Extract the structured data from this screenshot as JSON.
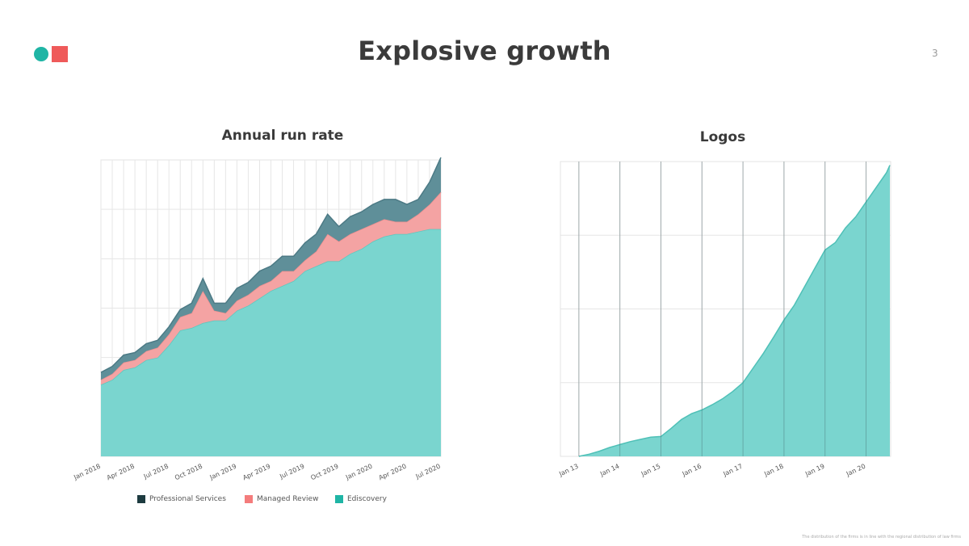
{
  "slide": {
    "title": "Explosive growth",
    "page_number": "3",
    "footnote": "The distribution of the firms is in line with the regional distribution of law firms",
    "brand_colors": {
      "teal": "#1fb5a5",
      "coral": "#ef5a5a"
    }
  },
  "chart_data": [
    {
      "type": "area",
      "stacked": true,
      "title": "Annual run rate",
      "grid": true,
      "legend_position": "bottom",
      "x": [
        "Jan 2018",
        "Feb 2018",
        "Mar 2018",
        "Apr 2018",
        "May 2018",
        "Jun 2018",
        "Jul 2018",
        "Aug 2018",
        "Sep 2018",
        "Oct 2018",
        "Nov 2018",
        "Dec 2018",
        "Jan 2019",
        "Feb 2019",
        "Mar 2019",
        "Apr 2019",
        "May 2019",
        "Jun 2019",
        "Jul 2019",
        "Aug 2019",
        "Sep 2019",
        "Oct 2019",
        "Nov 2019",
        "Dec 2019",
        "Jan 2020",
        "Feb 2020",
        "Mar 2020",
        "Apr 2020",
        "May 2020",
        "Jun 2020",
        "Jul 2020"
      ],
      "tick_labels": [
        "Jan 2018",
        "Apr 2018",
        "Jul 2018",
        "Oct 2018",
        "Jan 2019",
        "Apr 2019",
        "Jul 2019",
        "Oct 2019",
        "Jan 2020",
        "Apr 2020",
        "Jul 2020"
      ],
      "ylim": [
        0,
        6
      ],
      "series": [
        {
          "name": "Ediscovery",
          "color": "#7ad5cf",
          "values": [
            1.45,
            1.55,
            1.75,
            1.8,
            1.95,
            2.0,
            2.25,
            2.55,
            2.6,
            2.7,
            2.75,
            2.75,
            2.95,
            3.05,
            3.2,
            3.35,
            3.45,
            3.55,
            3.75,
            3.85,
            3.95,
            3.95,
            4.1,
            4.2,
            4.35,
            4.45,
            4.5,
            4.5,
            4.55,
            4.6,
            4.6
          ]
        },
        {
          "name": "Managed Review",
          "color": "#f4a3a3",
          "values": [
            0.1,
            0.12,
            0.15,
            0.15,
            0.18,
            0.2,
            0.22,
            0.27,
            0.3,
            0.65,
            0.2,
            0.15,
            0.2,
            0.22,
            0.25,
            0.2,
            0.3,
            0.2,
            0.22,
            0.3,
            0.55,
            0.4,
            0.4,
            0.4,
            0.35,
            0.35,
            0.25,
            0.25,
            0.35,
            0.5,
            0.75
          ]
        },
        {
          "name": "Professional Services",
          "color": "#5f8f99",
          "values": [
            0.15,
            0.15,
            0.15,
            0.15,
            0.15,
            0.15,
            0.15,
            0.15,
            0.2,
            0.25,
            0.15,
            0.2,
            0.25,
            0.25,
            0.3,
            0.3,
            0.3,
            0.3,
            0.35,
            0.35,
            0.4,
            0.3,
            0.35,
            0.35,
            0.4,
            0.4,
            0.45,
            0.35,
            0.3,
            0.45,
            0.7
          ]
        }
      ]
    },
    {
      "type": "area",
      "title": "Logos",
      "grid": true,
      "tick_labels": [
        "Jan 13",
        "Jan 14",
        "Jan 15",
        "Jan 16",
        "Jan 17",
        "Jan 18",
        "Jan 19",
        "Jan 20"
      ],
      "x": [
        2013.0,
        2013.25,
        2013.5,
        2013.75,
        2014.0,
        2014.25,
        2014.5,
        2014.75,
        2015.0,
        2015.25,
        2015.5,
        2015.75,
        2016.0,
        2016.25,
        2016.5,
        2016.75,
        2017.0,
        2017.25,
        2017.5,
        2017.75,
        2018.0,
        2018.25,
        2018.5,
        2018.75,
        2019.0,
        2019.25,
        2019.5,
        2019.75,
        2020.0,
        2020.25,
        2020.5,
        2020.58
      ],
      "ylim": [
        0,
        4
      ],
      "values": [
        0.0,
        0.03,
        0.07,
        0.12,
        0.16,
        0.2,
        0.23,
        0.26,
        0.27,
        0.38,
        0.5,
        0.58,
        0.63,
        0.7,
        0.78,
        0.88,
        1.0,
        1.2,
        1.4,
        1.62,
        1.85,
        2.05,
        2.3,
        2.55,
        2.8,
        2.9,
        3.1,
        3.25,
        3.45,
        3.65,
        3.85,
        3.95
      ],
      "color": "#7ad5cf"
    }
  ]
}
